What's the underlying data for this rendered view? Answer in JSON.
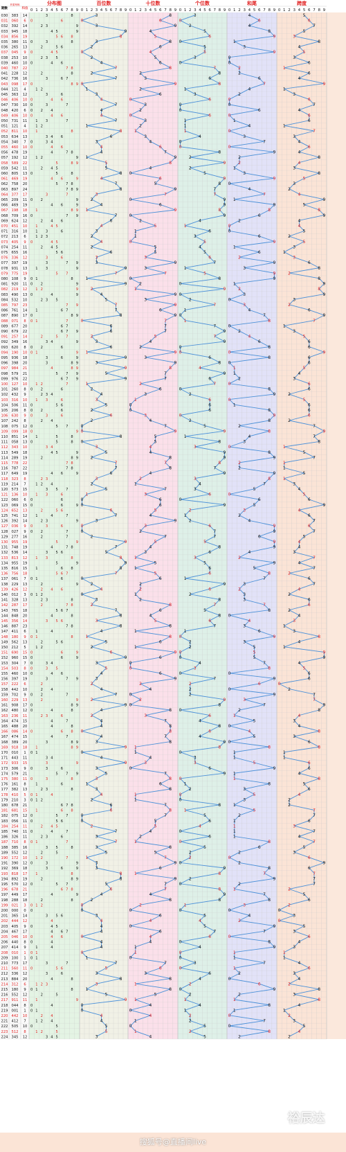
{
  "chart_data": {
    "type": "table",
    "title": "",
    "colors": {
      "blue_line": "#4a90d9",
      "red_text": "#e02020",
      "black_text": "#111111",
      "bg_fenbu": "#e4f4e4",
      "bg_bai": "#f1f1e6",
      "bg_shi": "#fbe0ea",
      "bg_ge": "#def0e8",
      "bg_hewei": "#e2e2f8",
      "bg_kuadu": "#fbe4d6",
      "header_bg": "#ffffff",
      "grid": "#c9c9c9"
    },
    "headers": {
      "period": "期数",
      "number": "开奖号码",
      "sum": "和值",
      "sections": [
        "分布图",
        "百位数",
        "十位数",
        "个位数",
        "和尾",
        "跨度"
      ]
    },
    "digits": [
      "0",
      "1",
      "2",
      "3",
      "4",
      "5",
      "6",
      "7",
      "8",
      "9"
    ],
    "start_period": 30,
    "numbers": [
      "383",
      "060",
      "392",
      "945",
      "856",
      "380",
      "265",
      "045",
      "253",
      "460",
      "787",
      "228",
      "736",
      "098",
      "121",
      "363",
      "406",
      "730",
      "420",
      "406",
      "731",
      "121",
      "811",
      "634",
      "340",
      "460",
      "478",
      "192",
      "589",
      "542",
      "805",
      "469",
      "758",
      "897",
      "377",
      "209",
      "469",
      "198",
      "709",
      "624",
      "451",
      "316",
      "213",
      "405",
      "254",
      "655",
      "336",
      "397",
      "931",
      "775",
      "108",
      "920",
      "219",
      "490",
      "532",
      "797",
      "761",
      "890",
      "071",
      "677",
      "679",
      "257",
      "349",
      "620",
      "190",
      "936",
      "398",
      "984",
      "579",
      "976",
      "127",
      "260",
      "432",
      "316",
      "506",
      "206",
      "630",
      "242",
      "075",
      "099",
      "851",
      "058",
      "343",
      "549",
      "289",
      "778",
      "787",
      "649",
      "323",
      "214",
      "573",
      "136",
      "060",
      "069",
      "652",
      "741",
      "392",
      "036",
      "027",
      "277",
      "955",
      "748",
      "536",
      "813",
      "955",
      "816",
      "756",
      "061",
      "229",
      "426",
      "012",
      "328",
      "287",
      "765",
      "848",
      "356",
      "887",
      "411",
      "180",
      "562",
      "212",
      "690",
      "960",
      "304",
      "503",
      "460",
      "397",
      "222",
      "442",
      "702",
      "229",
      "908",
      "480",
      "236",
      "474",
      "488",
      "086",
      "474",
      "389",
      "918",
      "010",
      "443",
      "933",
      "306",
      "579",
      "380",
      "161",
      "382",
      "410",
      "210",
      "678",
      "681",
      "075",
      "056",
      "254",
      "740",
      "326",
      "710",
      "385",
      "552",
      "172",
      "390",
      "369",
      "818",
      "892",
      "570",
      "678",
      "449",
      "288",
      "021",
      "000",
      "365",
      "444",
      "405",
      "467",
      "046",
      "440",
      "414",
      "010",
      "100",
      "773",
      "560",
      "336",
      "884",
      "312",
      "180",
      "552",
      "911",
      "044",
      "001",
      "442",
      "412",
      "505",
      "512",
      "345"
    ]
  },
  "footer": {
    "watermark": "裕辰达",
    "credit": "搜狐号@直播间live"
  }
}
